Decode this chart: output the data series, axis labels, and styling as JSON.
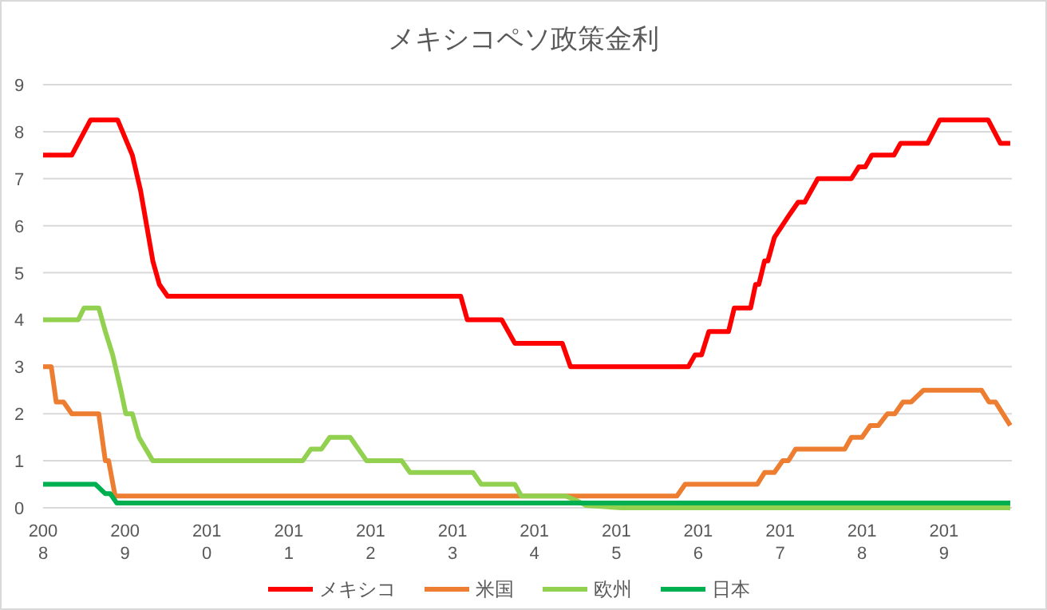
{
  "chart_data": {
    "type": "line",
    "title": "メキシコペソ政策金利",
    "legend": "bottom",
    "grid": "y",
    "line_style": "solid",
    "xlim": [
      2008,
      2019.83
    ],
    "xticks": [
      2008,
      2009,
      2010,
      2011,
      2012,
      2013,
      2014,
      2015,
      2016,
      2017,
      2018,
      2019
    ],
    "ylim": [
      0,
      9
    ],
    "yticks": [
      0,
      1,
      2,
      3,
      4,
      5,
      6,
      7,
      8,
      9
    ],
    "series": [
      {
        "name": "メキシコ",
        "color": "#ff0000",
        "x": [
          2008,
          2008.35,
          2008.58,
          2008.91,
          2009.03,
          2009.09,
          2009.19,
          2009.34,
          2009.42,
          2009.52,
          2013.1,
          2013.18,
          2013.6,
          2013.76,
          2014.34,
          2014.44,
          2015.88,
          2015.96,
          2016.04,
          2016.13,
          2016.37,
          2016.44,
          2016.64,
          2016.7,
          2016.74,
          2016.81,
          2016.85,
          2016.93,
          2017.12,
          2017.22,
          2017.3,
          2017.46,
          2017.87,
          2017.96,
          2018.04,
          2018.12,
          2018.39,
          2018.47,
          2018.8,
          2018.95,
          2019.54,
          2019.69,
          2019.81
        ],
        "values": [
          7.5,
          7.5,
          8.25,
          8.25,
          7.75,
          7.5,
          6.75,
          5.25,
          4.75,
          4.5,
          4.5,
          4,
          4,
          3.5,
          3.5,
          3,
          3,
          3.25,
          3.25,
          3.75,
          3.75,
          4.25,
          4.25,
          4.75,
          4.75,
          5.25,
          5.25,
          5.75,
          6.25,
          6.5,
          6.5,
          7,
          7,
          7.25,
          7.25,
          7.5,
          7.5,
          7.75,
          7.75,
          8.25,
          8.25,
          7.75,
          7.75
        ]
      },
      {
        "name": "米国",
        "color": "#ed7d31",
        "x": [
          2008,
          2008.1,
          2008.16,
          2008.25,
          2008.35,
          2008.68,
          2008.76,
          2008.8,
          2008.88,
          2015.74,
          2015.84,
          2016.72,
          2016.81,
          2016.93,
          2017.03,
          2017.1,
          2017.19,
          2017.79,
          2017.87,
          2018.0,
          2018.1,
          2018.2,
          2018.31,
          2018.4,
          2018.5,
          2018.6,
          2018.75,
          2019.46,
          2019.55,
          2019.63,
          2019.81
        ],
        "values": [
          3,
          3,
          2.25,
          2.25,
          2,
          2,
          1,
          1,
          0.25,
          0.25,
          0.5,
          0.5,
          0.75,
          0.75,
          1,
          1,
          1.25,
          1.25,
          1.5,
          1.5,
          1.75,
          1.75,
          2,
          2,
          2.25,
          2.25,
          2.5,
          2.5,
          2.25,
          2.25,
          1.75
        ]
      },
      {
        "name": "欧州",
        "color": "#92d050",
        "x": [
          2008,
          2008.43,
          2008.5,
          2008.68,
          2008.76,
          2008.85,
          2008.95,
          2009.01,
          2009.09,
          2009.17,
          2009.34,
          2011.17,
          2011.27,
          2011.4,
          2011.5,
          2011.75,
          2011.95,
          2012.38,
          2012.48,
          2013.25,
          2013.35,
          2013.76,
          2013.84,
          2014.38,
          2014.52,
          2014.63,
          2015.06,
          2019.81
        ],
        "values": [
          4,
          4,
          4.25,
          4.25,
          3.75,
          3.25,
          2.5,
          2,
          2,
          1.5,
          1,
          1,
          1.25,
          1.25,
          1.5,
          1.5,
          1,
          1,
          0.75,
          0.75,
          0.5,
          0.5,
          0.25,
          0.25,
          0.15,
          0.05,
          0,
          0
        ]
      },
      {
        "name": "日本",
        "color": "#00b050",
        "x": [
          2008,
          2008.64,
          2008.76,
          2008.82,
          2008.9,
          2019.81
        ],
        "values": [
          0.5,
          0.5,
          0.3,
          0.3,
          0.1,
          0.1
        ]
      }
    ]
  }
}
